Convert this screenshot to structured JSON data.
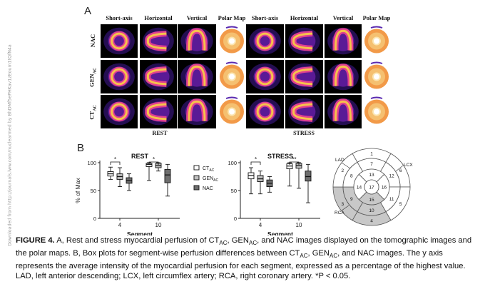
{
  "sidebar": {
    "text": "Downloaded from http://journals.lww.com/nuclearmed by BhDMf5ePHKav1zEoum1tQfN4a"
  },
  "panel_a": {
    "letter": "A",
    "column_headers": [
      "Short-axis",
      "Horizontal",
      "Vertical",
      "Polar Map",
      "Short-axis",
      "Horizontal",
      "Vertical",
      "Polar Map"
    ],
    "row_labels": [
      {
        "main": "NAC",
        "sub": ""
      },
      {
        "main": "GEN",
        "sub": "AC"
      },
      {
        "main": "CT",
        "sub": "AC"
      }
    ],
    "group_labels": [
      "REST",
      "STRESS"
    ]
  },
  "panel_b": {
    "letter": "B",
    "legend": [
      {
        "main": "CT",
        "sub": "AC",
        "fill": "#ffffff"
      },
      {
        "main": "GEN",
        "sub": "AC",
        "fill": "#bfbfbf"
      },
      {
        "main": "NAC",
        "sub": "",
        "fill": "#6e6e6e"
      }
    ],
    "polar_map": {
      "labels": [
        "LAD",
        "LCX",
        "RCA"
      ],
      "segments": [
        "1",
        "2",
        "3",
        "4",
        "5",
        "6",
        "7",
        "8",
        "9",
        "10",
        "11",
        "12",
        "13",
        "14",
        "15",
        "16",
        "17"
      ]
    }
  },
  "chart_data": [
    {
      "type": "box",
      "title": "REST",
      "xlabel": "Segment",
      "ylabel": "% of Max",
      "ylim": [
        0,
        100
      ],
      "yticks": [
        0,
        50,
        100
      ],
      "categories": [
        "4",
        "10"
      ],
      "significance": [
        {
          "segment": "4",
          "label": "*"
        },
        {
          "segment": "10",
          "label": "*"
        }
      ],
      "series": [
        {
          "name": "CT_AC",
          "boxes": [
            {
              "min": 70,
              "q1": 76,
              "median": 80,
              "q3": 84,
              "max": 92
            },
            {
              "min": 68,
              "q1": 93,
              "median": 97,
              "q3": 99,
              "max": 100
            }
          ]
        },
        {
          "name": "GEN_AC",
          "boxes": [
            {
              "min": 57,
              "q1": 70,
              "median": 75,
              "q3": 80,
              "max": 91
            },
            {
              "min": 85,
              "q1": 91,
              "median": 95,
              "q3": 99,
              "max": 100
            }
          ]
        },
        {
          "name": "NAC",
          "boxes": [
            {
              "min": 50,
              "q1": 63,
              "median": 68,
              "q3": 73,
              "max": 80
            },
            {
              "min": 40,
              "q1": 64,
              "median": 78,
              "q3": 88,
              "max": 97
            }
          ]
        }
      ]
    },
    {
      "type": "box",
      "title": "STRESS",
      "xlabel": "Segment",
      "ylabel": "% of Max",
      "ylim": [
        0,
        100
      ],
      "yticks": [
        0,
        50,
        100
      ],
      "categories": [
        "4",
        "10"
      ],
      "significance": [
        {
          "segment": "4",
          "label": "*"
        },
        {
          "segment": "10",
          "label": "**"
        }
      ],
      "series": [
        {
          "name": "CT_AC",
          "boxes": [
            {
              "min": 44,
              "q1": 71,
              "median": 77,
              "q3": 82,
              "max": 91
            },
            {
              "min": 58,
              "q1": 89,
              "median": 94,
              "q3": 98,
              "max": 100
            }
          ]
        },
        {
          "name": "GEN_AC",
          "boxes": [
            {
              "min": 44,
              "q1": 66,
              "median": 71,
              "q3": 77,
              "max": 85
            },
            {
              "min": 54,
              "q1": 90,
              "median": 95,
              "q3": 99,
              "max": 100
            }
          ]
        },
        {
          "name": "NAC",
          "boxes": [
            {
              "min": 47,
              "q1": 57,
              "median": 63,
              "q3": 69,
              "max": 75
            },
            {
              "min": 28,
              "q1": 67,
              "median": 75,
              "q3": 85,
              "max": 97
            }
          ]
        }
      ]
    }
  ],
  "caption": {
    "fig_label": "FIGURE 4.",
    "p1": " A, Rest and stress myocardial perfusion of CT",
    "s1": "AC",
    "p2": ", GEN",
    "s2": "AC",
    "p3": ", and NAC images displayed on the tomographic images and the polar maps. B, Box plots for segment-wise perfusion differences between CT",
    "s3": "AC",
    "p4": ", GEN",
    "s4": "AC",
    "p5": ", and NAC images. The y axis represents the average intensity of the myocardial perfusion for each segment, expressed as a percentage of the highest value. LAD, left anterior descending; LCX, left circumflex artery; RCA, right coronary artery. *P < 0.05."
  },
  "colors": {
    "myocardium_hot": "#f3c24a",
    "myocardium_mid": "#c02890",
    "myocardium_low": "#5a1a96",
    "polar_bg": "#f0a050"
  }
}
